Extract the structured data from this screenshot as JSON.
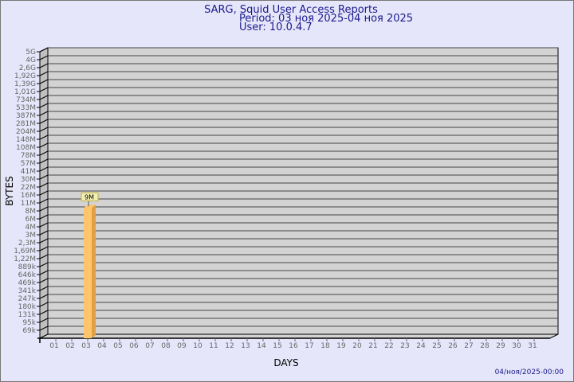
{
  "chart_data": {
    "type": "bar",
    "title": "SARG, Squid User Access Reports",
    "subtitle": [
      "Period: 03 ноя 2025-04 ноя 2025",
      "User: 10.0.4.7"
    ],
    "xlabel": "DAYS",
    "ylabel": "BYTES",
    "categories": [
      "01",
      "02",
      "03",
      "04",
      "05",
      "06",
      "07",
      "08",
      "09",
      "10",
      "11",
      "12",
      "13",
      "14",
      "15",
      "16",
      "17",
      "18",
      "19",
      "20",
      "21",
      "22",
      "23",
      "24",
      "25",
      "26",
      "27",
      "28",
      "29",
      "30",
      "31"
    ],
    "values": [
      0,
      0,
      9000000,
      0,
      0,
      0,
      0,
      0,
      0,
      0,
      0,
      0,
      0,
      0,
      0,
      0,
      0,
      0,
      0,
      0,
      0,
      0,
      0,
      0,
      0,
      0,
      0,
      0,
      0,
      0,
      0
    ],
    "data_labels": [
      {
        "category": "03",
        "text": "9M"
      }
    ],
    "yticks": [
      "5G",
      "4G",
      "2,6G",
      "1,92G",
      "1,39G",
      "1,01G",
      "734M",
      "533M",
      "387M",
      "281M",
      "204M",
      "148M",
      "108M",
      "78M",
      "57M",
      "41M",
      "30M",
      "22M",
      "16M",
      "11M",
      "8M",
      "6M",
      "4M",
      "3M",
      "2,3M",
      "1,69M",
      "1,22M",
      "889k",
      "646k",
      "469k",
      "341k",
      "247k",
      "180k",
      "131k",
      "95k",
      "69k"
    ],
    "yscale": "logarithmic-like",
    "grid": true,
    "style": "3d",
    "colors": {
      "background": "#e6e6fa",
      "wall": "#d3d3d3",
      "side_wall": "#c0c0c0",
      "bar_front": "#fec56a",
      "bar_side": "#e0a048",
      "label_box": "#f0f0b0",
      "title": "#1a1a8c"
    }
  },
  "footer": {
    "timestamp": "04/ноя/2025-00:00"
  }
}
